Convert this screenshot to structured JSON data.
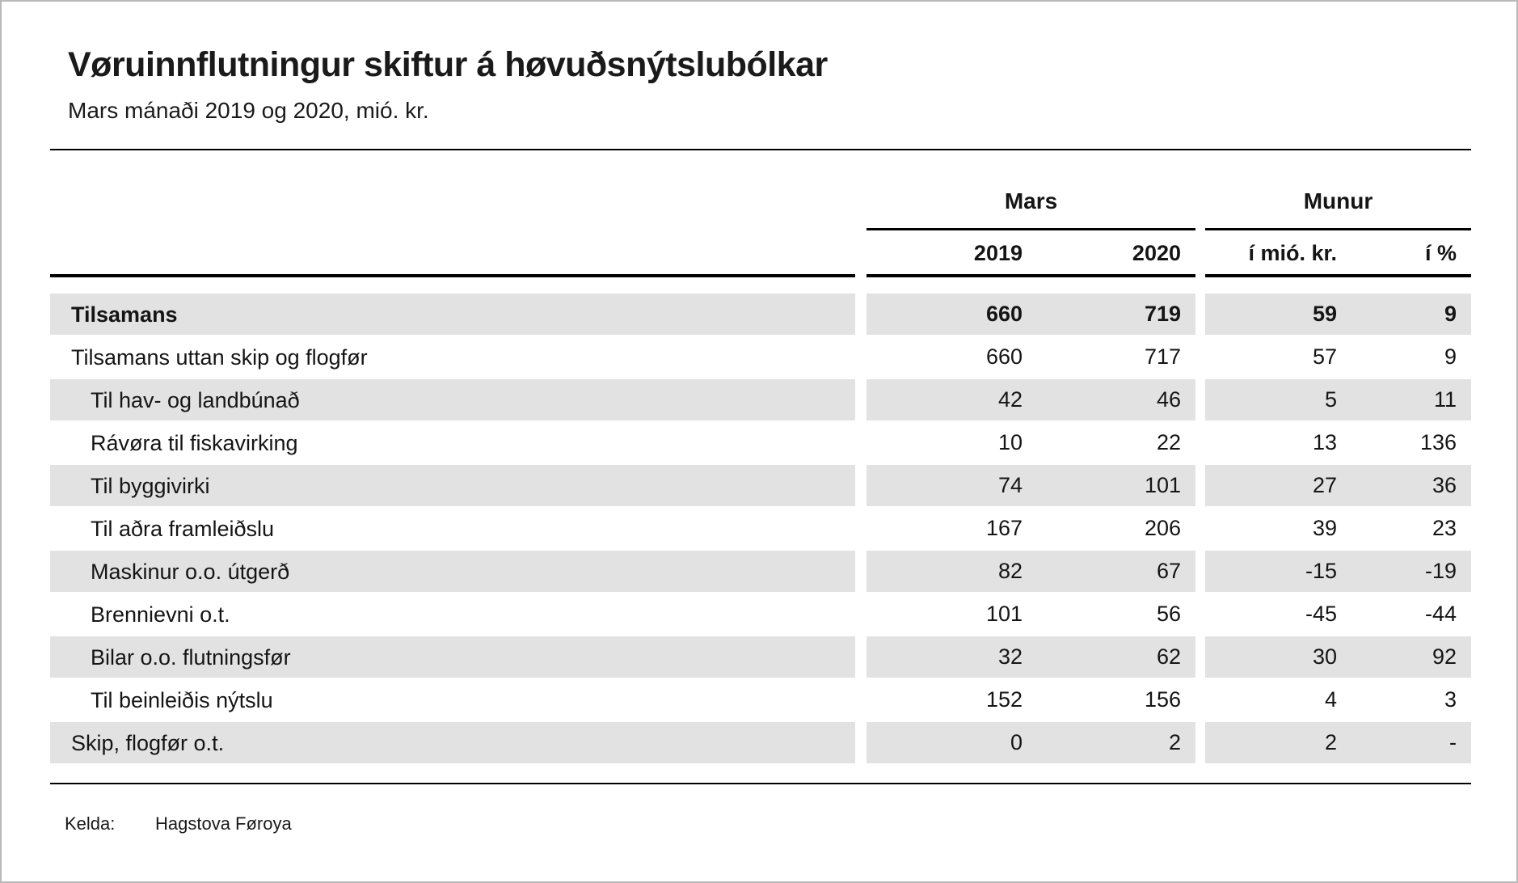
{
  "page": {
    "title": "Vøruinnflutningur skiftur á høvuðsnýtslubólkar",
    "subtitle": "Mars mánaði 2019 og 2020, mió. kr.",
    "source_label": "Kelda:",
    "source_value": "Hagstova Føroya"
  },
  "table": {
    "col_groups": [
      {
        "label": "Mars"
      },
      {
        "label": "Munur"
      }
    ],
    "columns": [
      "2019",
      "2020",
      "í mió. kr.",
      "í %"
    ],
    "rows": [
      {
        "label": "Tilsamans",
        "indent": 0,
        "bold": true,
        "values": [
          "660",
          "719",
          "59",
          "9"
        ]
      },
      {
        "label": "Tilsamans uttan skip og flogfør",
        "indent": 0,
        "bold": false,
        "values": [
          "660",
          "717",
          "57",
          "9"
        ]
      },
      {
        "label": "Til hav- og landbúnað",
        "indent": 1,
        "bold": false,
        "values": [
          "42",
          "46",
          "5",
          "11"
        ]
      },
      {
        "label": "Rávøra til fiskavirking",
        "indent": 1,
        "bold": false,
        "values": [
          "10",
          "22",
          "13",
          "136"
        ]
      },
      {
        "label": "Til byggivirki",
        "indent": 1,
        "bold": false,
        "values": [
          "74",
          "101",
          "27",
          "36"
        ]
      },
      {
        "label": "Til aðra framleiðslu",
        "indent": 1,
        "bold": false,
        "values": [
          "167",
          "206",
          "39",
          "23"
        ]
      },
      {
        "label": "Maskinur o.o. útgerð",
        "indent": 1,
        "bold": false,
        "values": [
          "82",
          "67",
          "-15",
          "-19"
        ]
      },
      {
        "label": "Brennievni o.t.",
        "indent": 1,
        "bold": false,
        "values": [
          "101",
          "56",
          "-45",
          "-44"
        ]
      },
      {
        "label": "Bilar o.o. flutningsfør",
        "indent": 1,
        "bold": false,
        "values": [
          "32",
          "62",
          "30",
          "92"
        ]
      },
      {
        "label": "Til beinleiðis nýtslu",
        "indent": 1,
        "bold": false,
        "values": [
          "152",
          "156",
          "4",
          "3"
        ]
      },
      {
        "label": "Skip, flogfør o.t.",
        "indent": 0,
        "bold": false,
        "values": [
          "0",
          "2",
          "2",
          "-"
        ]
      }
    ]
  },
  "colors": {
    "stripe_gray": "#e2e2e2",
    "rule_black": "#000000",
    "text": "#151515"
  }
}
